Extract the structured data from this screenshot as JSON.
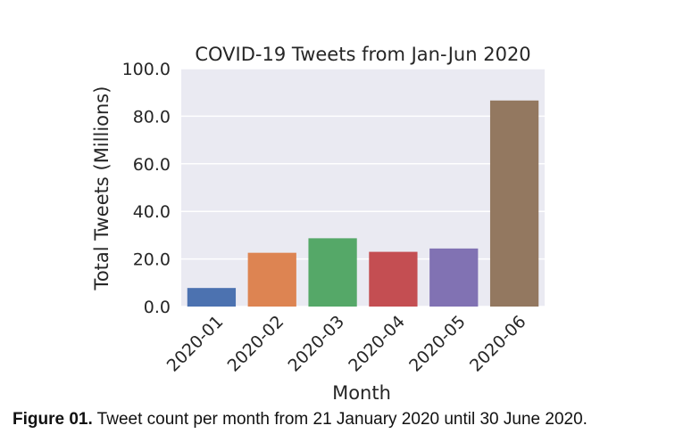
{
  "chart_data": {
    "type": "bar",
    "title": "COVID-19 Tweets from Jan-Jun 2020",
    "xlabel": "Month",
    "ylabel": "Total Tweets (Millions)",
    "categories": [
      "2020-01",
      "2020-02",
      "2020-03",
      "2020-04",
      "2020-05",
      "2020-06"
    ],
    "values": [
      7.8,
      22.6,
      28.7,
      23.0,
      24.4,
      86.6
    ],
    "ylim": [
      0,
      100
    ],
    "yticks": [
      "0.0",
      "20.0",
      "40.0",
      "60.0",
      "80.0",
      "100.0"
    ],
    "grid": true,
    "colors": [
      "#4c72b0",
      "#dd8452",
      "#55a868",
      "#c44e52",
      "#8172b3",
      "#937860"
    ],
    "background": "#eaeaf2"
  },
  "caption": {
    "label": "Figure 01.",
    "text": " Tweet count per month from 21 January 2020 until 30 June 2020."
  }
}
